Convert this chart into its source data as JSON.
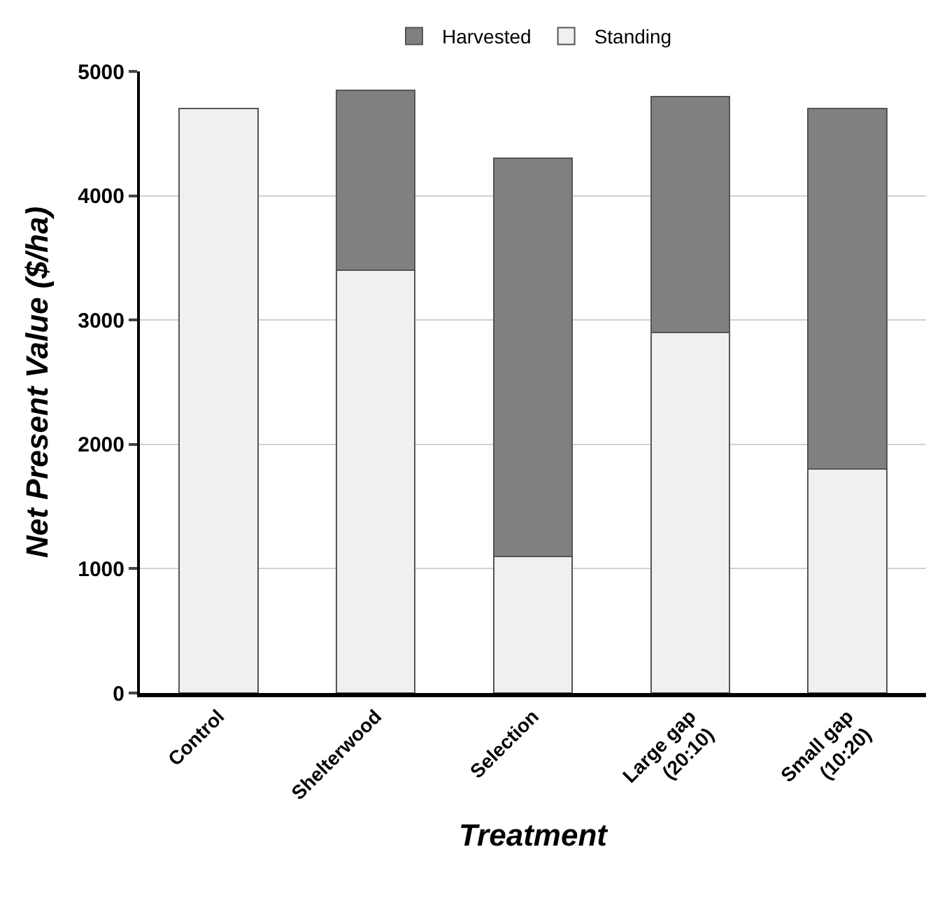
{
  "chart_data": {
    "type": "bar",
    "stacked": true,
    "xlabel": "Treatment",
    "ylabel": "Net Present Value ($/ha)",
    "categories": [
      "Control",
      "Shelterwood",
      "Selection",
      "Large gap\n(20:10)",
      "Small gap\n(10:20)"
    ],
    "series": [
      {
        "name": "Standing",
        "color": "#f0f0f0",
        "values": [
          4700,
          3400,
          1100,
          2900,
          1800
        ]
      },
      {
        "name": "Harvested",
        "color": "#808080",
        "values": [
          null,
          1450,
          3200,
          1900,
          2900
        ]
      }
    ],
    "ylim": [
      0,
      5000
    ],
    "yticks": [
      0,
      1000,
      2000,
      3000,
      4000,
      5000
    ],
    "grid": "y",
    "legend": "top"
  }
}
